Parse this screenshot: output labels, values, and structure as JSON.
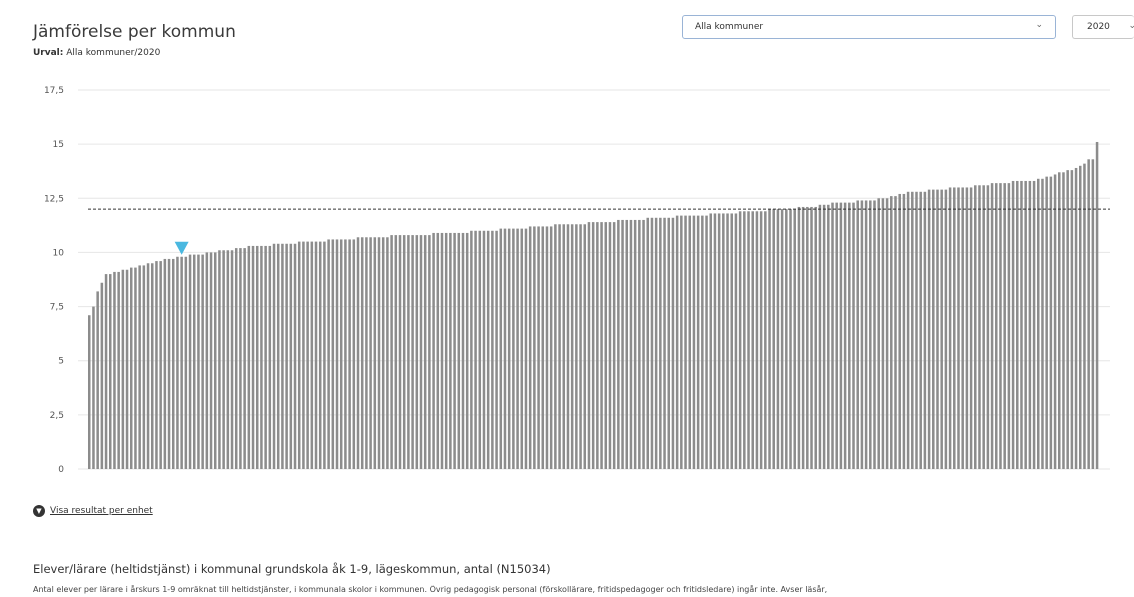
{
  "header": {
    "title": "Jämförelse per kommun",
    "selection_label": "Urval:",
    "selection_value": "Alla kommuner/2020"
  },
  "filters": {
    "kommun_value": "Alla kommuner",
    "year_value": "2020"
  },
  "expand_link": {
    "label": "Visa resultat per enhet"
  },
  "metric": {
    "title": "Elever/lärare (heltidstjänst) i kommunal grundskola åk 1-9, lägeskommun, antal (N15034)",
    "description": "Antal elever per lärare i årskurs 1-9 omräknat till heltidstjänster, i kommunala skolor i kommunen. Övrig pedagogisk personal (förskollärare, fritidspedagoger och fritidsledare) ingår inte. Avser läsår,"
  },
  "colors": {
    "bar": "#8c8c8c",
    "marker": "#4ab8e0",
    "average_line": "#333333",
    "grid": "#e6e6e6"
  },
  "chart_data": {
    "type": "bar",
    "ylim": [
      0,
      17.5
    ],
    "yticks": [
      "0",
      "2,5",
      "5",
      "7,5",
      "10",
      "12,5",
      "15",
      "17,5"
    ],
    "ytick_values": [
      0,
      2.5,
      5,
      7.5,
      10,
      12.5,
      15,
      17.5
    ],
    "average": 12.0,
    "marker_index": 22,
    "grid": true,
    "sorted_ascending": true,
    "values": [
      7.1,
      7.5,
      8.2,
      8.6,
      9.0,
      9.0,
      9.1,
      9.1,
      9.2,
      9.2,
      9.3,
      9.3,
      9.4,
      9.4,
      9.5,
      9.5,
      9.6,
      9.6,
      9.7,
      9.7,
      9.7,
      9.8,
      9.8,
      9.8,
      9.9,
      9.9,
      9.9,
      9.9,
      10.0,
      10.0,
      10.0,
      10.1,
      10.1,
      10.1,
      10.1,
      10.2,
      10.2,
      10.2,
      10.3,
      10.3,
      10.3,
      10.3,
      10.3,
      10.3,
      10.4,
      10.4,
      10.4,
      10.4,
      10.4,
      10.4,
      10.5,
      10.5,
      10.5,
      10.5,
      10.5,
      10.5,
      10.5,
      10.6,
      10.6,
      10.6,
      10.6,
      10.6,
      10.6,
      10.6,
      10.7,
      10.7,
      10.7,
      10.7,
      10.7,
      10.7,
      10.7,
      10.7,
      10.8,
      10.8,
      10.8,
      10.8,
      10.8,
      10.8,
      10.8,
      10.8,
      10.8,
      10.8,
      10.9,
      10.9,
      10.9,
      10.9,
      10.9,
      10.9,
      10.9,
      10.9,
      10.9,
      11.0,
      11.0,
      11.0,
      11.0,
      11.0,
      11.0,
      11.0,
      11.1,
      11.1,
      11.1,
      11.1,
      11.1,
      11.1,
      11.1,
      11.2,
      11.2,
      11.2,
      11.2,
      11.2,
      11.2,
      11.3,
      11.3,
      11.3,
      11.3,
      11.3,
      11.3,
      11.3,
      11.3,
      11.4,
      11.4,
      11.4,
      11.4,
      11.4,
      11.4,
      11.4,
      11.5,
      11.5,
      11.5,
      11.5,
      11.5,
      11.5,
      11.5,
      11.6,
      11.6,
      11.6,
      11.6,
      11.6,
      11.6,
      11.6,
      11.7,
      11.7,
      11.7,
      11.7,
      11.7,
      11.7,
      11.7,
      11.7,
      11.8,
      11.8,
      11.8,
      11.8,
      11.8,
      11.8,
      11.8,
      11.9,
      11.9,
      11.9,
      11.9,
      11.9,
      11.9,
      11.9,
      12.0,
      12.0,
      12.0,
      12.0,
      12.0,
      12.0,
      12.0,
      12.1,
      12.1,
      12.1,
      12.1,
      12.1,
      12.2,
      12.2,
      12.2,
      12.3,
      12.3,
      12.3,
      12.3,
      12.3,
      12.3,
      12.4,
      12.4,
      12.4,
      12.4,
      12.4,
      12.5,
      12.5,
      12.5,
      12.6,
      12.6,
      12.7,
      12.7,
      12.8,
      12.8,
      12.8,
      12.8,
      12.8,
      12.9,
      12.9,
      12.9,
      12.9,
      12.9,
      13.0,
      13.0,
      13.0,
      13.0,
      13.0,
      13.0,
      13.1,
      13.1,
      13.1,
      13.1,
      13.2,
      13.2,
      13.2,
      13.2,
      13.2,
      13.3,
      13.3,
      13.3,
      13.3,
      13.3,
      13.3,
      13.4,
      13.4,
      13.5,
      13.5,
      13.6,
      13.7,
      13.7,
      13.8,
      13.8,
      13.9,
      14.0,
      14.1,
      14.3,
      14.3,
      15.1
    ]
  }
}
